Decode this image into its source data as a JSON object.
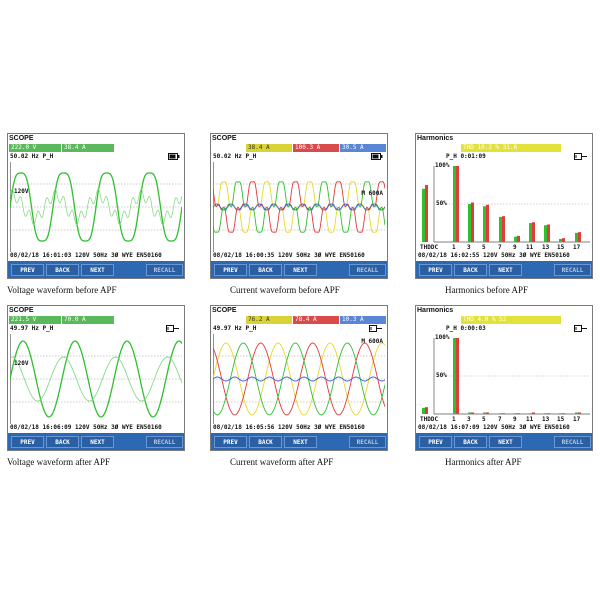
{
  "panels": [
    {
      "title": "SCOPE",
      "readings": [
        {
          "text": "222.0   V",
          "color": "#8fd98f"
        },
        {
          "text": "38.4   A",
          "color": "#8fd98f"
        }
      ],
      "status": "50.02 Hz  P_H",
      "status_icon": "battery-icon",
      "level_label": "120V",
      "infobar": "08/02/18  16:01:03      120V  50Hz 3Ø WYE     EN50160",
      "buttons": [
        "PREV",
        "BACK",
        "NEXT",
        "RECALL"
      ],
      "caption": "Voltage waveform before APF",
      "waveform_color": "#2fbf2f"
    },
    {
      "title": "SCOPE",
      "readings": [
        {
          "text": "38.4  A",
          "color": "#e8e46a"
        },
        {
          "text": "100.3  A",
          "color": "#e86a6a"
        },
        {
          "text": "30.5  A",
          "color": "#7fa6e8"
        }
      ],
      "status": "50.02 Hz  P_H",
      "status_icon": "battery-icon",
      "marker_label": "M 600A",
      "infobar": "08/02/18  16:00:35     120V  50Hz 3Ø WYE    EN50160",
      "buttons": [
        "PREV",
        "BACK",
        "NEXT",
        "RECALL"
      ],
      "caption": "Current waveform before APF"
    },
    {
      "title": "Harmonics",
      "readings": [
        {
          "text": "THD 10.2  %  31.6",
          "color": "#eaea4a"
        }
      ],
      "status": "P_H          0:01:09",
      "status_icon": "plug-icon",
      "y_labels": [
        "100%",
        "50%"
      ],
      "x_labels": [
        "THDDC",
        "1",
        "3",
        "5",
        "7",
        "9",
        "11",
        "13",
        "15",
        "17"
      ],
      "infobar": "08/02/18  16:02:55      120V  50Hz 3Ø WYE     EN50160",
      "buttons": [
        "PREV",
        "BACK",
        "NEXT",
        "RECALL"
      ],
      "caption": "Harmonics before APF",
      "chart_data": {
        "type": "bar",
        "categories": [
          "THDDC",
          "1",
          "3",
          "5",
          "7",
          "9",
          "11",
          "13",
          "15",
          "17"
        ],
        "series": [
          {
            "values": [
              70,
              100,
              50,
              47,
              33,
              7,
              25,
              22,
              4,
              12
            ],
            "color": "#2fbf2f"
          },
          {
            "values": [
              75,
              100,
              52,
              49,
              34,
              8,
              26,
              23,
              5,
              13
            ],
            "color": "#e33a3a"
          }
        ],
        "ylim": [
          0,
          100
        ]
      }
    },
    {
      "title": "SCOPE",
      "readings": [
        {
          "text": "221.5   V",
          "color": "#8fd98f"
        },
        {
          "text": "70.0   A",
          "color": "#8fd98f"
        }
      ],
      "status": "49.97 Hz  P_H",
      "status_icon": "plug-icon",
      "level_label": "120V",
      "infobar": "08/02/18  16:06:09      120V  50Hz 3Ø WYE     EN50160",
      "buttons": [
        "PREV",
        "BACK",
        "NEXT",
        "RECALL"
      ],
      "caption": "Voltage waveform after APF",
      "waveform_color": "#2fbf2f"
    },
    {
      "title": "SCOPE",
      "readings": [
        {
          "text": "76.2  A",
          "color": "#e8e46a"
        },
        {
          "text": "78.4  A",
          "color": "#e86a6a"
        },
        {
          "text": "10.3  A",
          "color": "#7fa6e8"
        }
      ],
      "status": "49.97 Hz  P_H",
      "status_icon": "plug-icon",
      "marker_label": "M 600A",
      "infobar": "08/02/18  16:05:56     120V  50Hz 3Ø WYE    EN50160",
      "buttons": [
        "PREV",
        "BACK",
        "NEXT",
        "RECALL"
      ],
      "caption": "Current waveform after APF"
    },
    {
      "title": "Harmonics",
      "readings": [
        {
          "text": "THD  4.0  %  52",
          "color": "#eaea4a"
        }
      ],
      "status": "P_H          0:00:03",
      "status_icon": "plug-icon",
      "y_labels": [
        "100%",
        "50%"
      ],
      "x_labels": [
        "THDDC",
        "1",
        "3",
        "5",
        "7",
        "9",
        "11",
        "13",
        "15",
        "17"
      ],
      "infobar": "08/02/18  16:07:09      120V  50Hz 3Ø WYE     EN50160",
      "buttons": [
        "PREV",
        "BACK",
        "NEXT",
        "RECALL"
      ],
      "caption": "Harmonics after APF",
      "chart_data": {
        "type": "bar",
        "categories": [
          "THDDC",
          "1",
          "3",
          "5",
          "7",
          "9",
          "11",
          "13",
          "15",
          "17"
        ],
        "series": [
          {
            "values": [
              8,
              100,
              2,
              2,
              1,
              1,
              1,
              1,
              1,
              2
            ],
            "color": "#2fbf2f"
          },
          {
            "values": [
              9,
              100,
              2,
              2,
              1,
              1,
              2,
              1,
              1,
              2
            ],
            "color": "#e33a3a"
          }
        ],
        "ylim": [
          0,
          100
        ]
      }
    }
  ]
}
